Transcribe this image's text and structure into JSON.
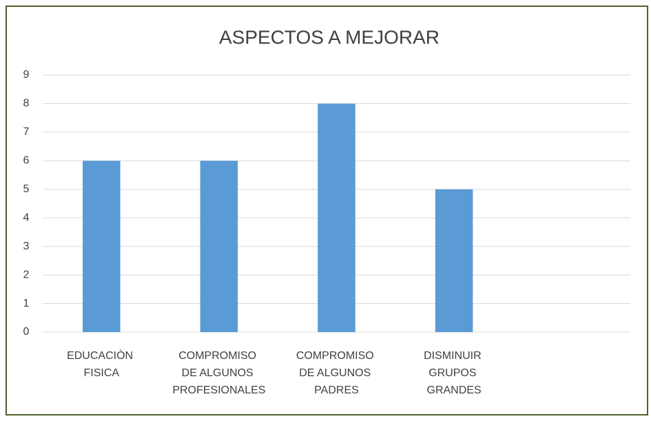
{
  "chart_data": {
    "type": "bar",
    "title": "ASPECTOS A MEJORAR",
    "categories": [
      "EDUCACIÒN FISICA",
      "COMPROMISO DE ALGUNOS PROFESIONALES",
      "COMPROMISO DE ALGUNOS PADRES",
      "DISMINUIR GRUPOS GRANDES",
      null
    ],
    "values": [
      6,
      6,
      8,
      5,
      null
    ],
    "color": "#5b9bd5",
    "ylim": [
      0,
      9
    ],
    "yticks": [
      0,
      1,
      2,
      3,
      4,
      5,
      6,
      7,
      8,
      9
    ],
    "grid": true
  }
}
